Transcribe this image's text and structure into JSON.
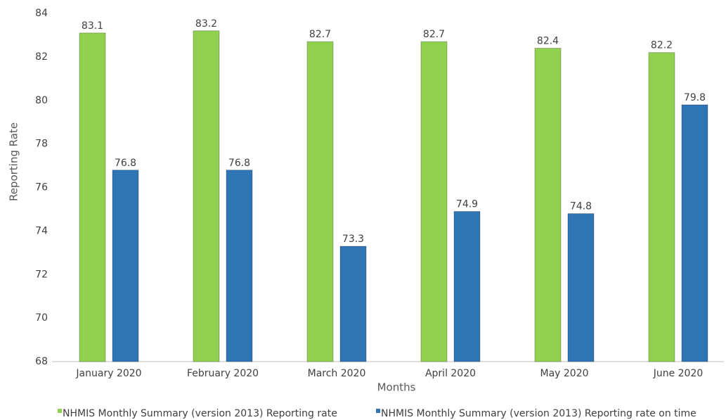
{
  "chart_data": {
    "type": "bar",
    "x_label": "Months",
    "y_label": "Reporting Rate",
    "categories": [
      "January 2020",
      "February 2020",
      "March 2020",
      "April 2020",
      "May 2020",
      "June 2020"
    ],
    "series": [
      {
        "name": "NHMIS Monthly Summary (version 2013) Reporting rate",
        "color": "#92d050",
        "values": [
          83.1,
          83.2,
          82.7,
          82.7,
          82.4,
          82.2
        ]
      },
      {
        "name": "NHMIS Monthly Summary (version 2013) Reporting rate on time",
        "color": "#2e75b6",
        "values": [
          76.8,
          76.8,
          73.3,
          74.9,
          74.8,
          79.8
        ]
      }
    ],
    "ylim": [
      68,
      84
    ],
    "yticks": [
      68,
      70,
      72,
      74,
      76,
      78,
      80,
      82,
      84
    ],
    "grid": false,
    "legend": "bottom"
  }
}
